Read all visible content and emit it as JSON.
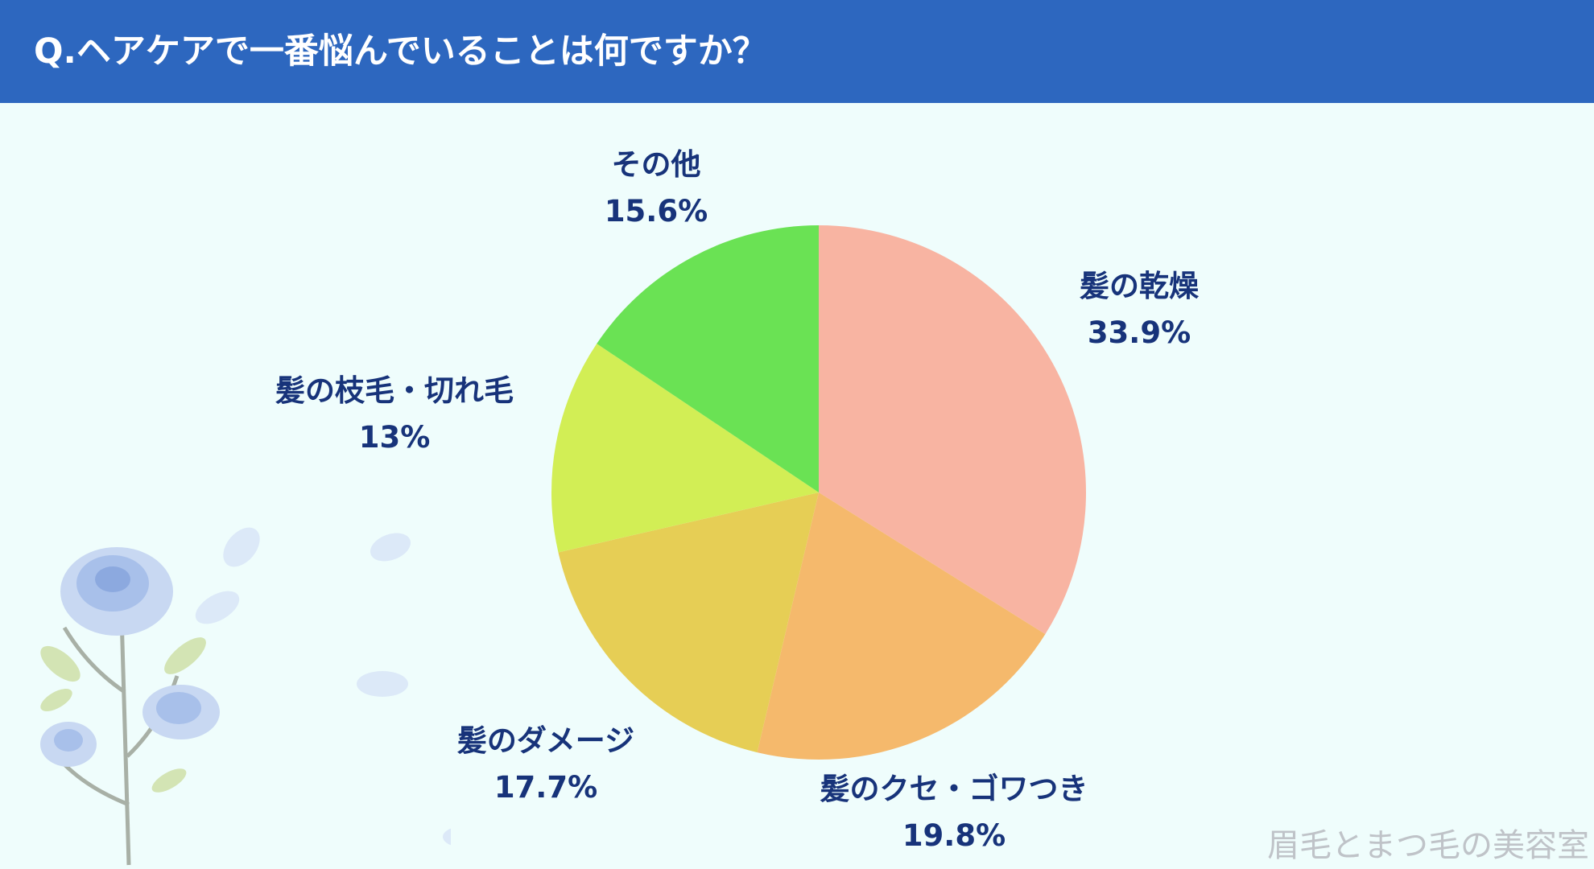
{
  "header": {
    "title": "Q.ヘアケアで一番悩んでいることは何ですか？",
    "bg_color": "#2D67BF"
  },
  "chart_data": {
    "type": "pie",
    "start": "12 o'clock, clockwise",
    "slices": [
      {
        "label": "髪の乾燥",
        "value": 33.9,
        "value_label": "33.9%",
        "color": "#F8B4A2"
      },
      {
        "label": "髪のクセ・ゴワつき",
        "value": 19.8,
        "value_label": "19.8%",
        "color": "#F5B96C"
      },
      {
        "label": "髪のダメージ",
        "value": 17.7,
        "value_label": "17.7%",
        "color": "#E6CE55"
      },
      {
        "label": "髪の枝毛・切れ毛",
        "value": 13,
        "value_label": "13%",
        "color": "#D2EE55"
      },
      {
        "label": "その他",
        "value": 15.6,
        "value_label": "15.6%",
        "color": "#6AE254"
      }
    ]
  },
  "watermark": "眉毛とまつ毛の美容室",
  "decorations": [
    "blue-rose-icon",
    "blue-rose-branch-illustration",
    "petal-icon"
  ]
}
